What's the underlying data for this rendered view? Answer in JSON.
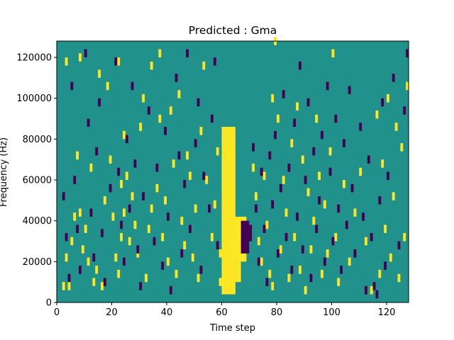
{
  "chart_data": {
    "type": "heatmap",
    "title": "Predicted : Gma",
    "xlabel": "Time step",
    "ylabel": "Frequency (Hz)",
    "xlim": [
      0,
      128
    ],
    "ylim": [
      0,
      128000
    ],
    "x_ticks": [
      0,
      20,
      40,
      60,
      80,
      100,
      120
    ],
    "y_ticks": [
      0,
      20000,
      40000,
      60000,
      80000,
      100000,
      120000
    ],
    "y_tick_labels": [
      "0",
      "20000",
      "40000",
      "60000",
      "80000",
      "100000",
      "120000"
    ],
    "n_time_steps": 128,
    "n_freq_bins": 64,
    "freq_bin_width_hz": 2000,
    "levels": [
      -1,
      0,
      1
    ],
    "colors": {
      "low": "#440154",
      "mid": "#21918c",
      "high": "#fde725",
      "frame": "#000000",
      "text": "#000000",
      "background": "#ffffff"
    },
    "colormap": "viridis",
    "background_level": 0,
    "high_blocks": [
      {
        "t": [
          60,
          65
        ],
        "f": [
          4000,
          86000
        ]
      },
      {
        "t": [
          64,
          69
        ],
        "f": [
          20000,
          42000
        ]
      },
      {
        "t": [
          65,
          67
        ],
        "f": [
          10000,
          20000
        ]
      }
    ],
    "low_blocks": [
      {
        "t": [
          67,
          70
        ],
        "f": [
          24000,
          40000
        ]
      },
      {
        "t": [
          69,
          71
        ],
        "f": [
          30000,
          38000
        ]
      }
    ],
    "high_cells": [
      [
        2,
        6000
      ],
      [
        3,
        20000
      ],
      [
        3,
        116000
      ],
      [
        4,
        6000
      ],
      [
        5,
        28000
      ],
      [
        6,
        40000
      ],
      [
        7,
        70000
      ],
      [
        8,
        42000
      ],
      [
        8,
        118000
      ],
      [
        9,
        24000
      ],
      [
        10,
        34000
      ],
      [
        11,
        18000
      ],
      [
        12,
        64000
      ],
      [
        13,
        8000
      ],
      [
        14,
        14000
      ],
      [
        15,
        110000
      ],
      [
        16,
        6000
      ],
      [
        17,
        48000
      ],
      [
        18,
        104000
      ],
      [
        19,
        68000
      ],
      [
        20,
        40000
      ],
      [
        21,
        20000
      ],
      [
        22,
        12000
      ],
      [
        22,
        116000
      ],
      [
        23,
        30000
      ],
      [
        23,
        56000
      ],
      [
        24,
        42000
      ],
      [
        24,
        80000
      ],
      [
        25,
        60000
      ],
      [
        26,
        28000
      ],
      [
        27,
        50000
      ],
      [
        28,
        36000
      ],
      [
        29,
        22000
      ],
      [
        30,
        84000
      ],
      [
        31,
        98000
      ],
      [
        32,
        10000
      ],
      [
        33,
        34000
      ],
      [
        34,
        44000
      ],
      [
        34,
        114000
      ],
      [
        36,
        54000
      ],
      [
        37,
        88000
      ],
      [
        37,
        120000
      ],
      [
        38,
        30000
      ],
      [
        39,
        48000
      ],
      [
        40,
        18000
      ],
      [
        41,
        92000
      ],
      [
        42,
        66000
      ],
      [
        43,
        12000
      ],
      [
        44,
        100000
      ],
      [
        45,
        38000
      ],
      [
        46,
        26000
      ],
      [
        47,
        70000
      ],
      [
        48,
        60000
      ],
      [
        49,
        20000
      ],
      [
        50,
        44000
      ],
      [
        51,
        10000
      ],
      [
        52,
        82000
      ],
      [
        53,
        114000
      ],
      [
        54,
        58000
      ],
      [
        56,
        30000
      ],
      [
        57,
        46000
      ],
      [
        58,
        72000
      ],
      [
        59,
        8000
      ],
      [
        59,
        22000
      ],
      [
        60,
        56000
      ],
      [
        71,
        64000
      ],
      [
        72,
        50000
      ],
      [
        73,
        28000
      ],
      [
        74,
        18000
      ],
      [
        75,
        60000
      ],
      [
        76,
        36000
      ],
      [
        77,
        12000
      ],
      [
        78,
        6000
      ],
      [
        78,
        98000
      ],
      [
        79,
        126000
      ],
      [
        80,
        88000
      ],
      [
        81,
        24000
      ],
      [
        82,
        58000
      ],
      [
        83,
        42000
      ],
      [
        84,
        10000
      ],
      [
        85,
        76000
      ],
      [
        86,
        30000
      ],
      [
        87,
        94000
      ],
      [
        88,
        14000
      ],
      [
        89,
        68000
      ],
      [
        90,
        4000
      ],
      [
        91,
        52000
      ],
      [
        92,
        24000
      ],
      [
        93,
        38000
      ],
      [
        94,
        88000
      ],
      [
        95,
        60000
      ],
      [
        96,
        12000
      ],
      [
        97,
        46000
      ],
      [
        98,
        22000
      ],
      [
        99,
        72000
      ],
      [
        100,
        120000
      ],
      [
        101,
        30000
      ],
      [
        102,
        8000
      ],
      [
        104,
        56000
      ],
      [
        106,
        18000
      ],
      [
        108,
        42000
      ],
      [
        110,
        62000
      ],
      [
        112,
        28000
      ],
      [
        114,
        4000
      ],
      [
        116,
        90000
      ],
      [
        117,
        12000
      ],
      [
        118,
        66000
      ],
      [
        119,
        34000
      ],
      [
        120,
        98000
      ],
      [
        121,
        20000
      ],
      [
        122,
        50000
      ],
      [
        123,
        84000
      ],
      [
        124,
        10000
      ],
      [
        125,
        74000
      ],
      [
        126,
        30000
      ],
      [
        127,
        104000
      ]
    ],
    "low_cells": [
      [
        2,
        50000
      ],
      [
        3,
        30000
      ],
      [
        4,
        10000
      ],
      [
        5,
        104000
      ],
      [
        6,
        58000
      ],
      [
        7,
        34000
      ],
      [
        8,
        14000
      ],
      [
        10,
        120000
      ],
      [
        11,
        86000
      ],
      [
        12,
        42000
      ],
      [
        13,
        20000
      ],
      [
        14,
        72000
      ],
      [
        15,
        96000
      ],
      [
        16,
        32000
      ],
      [
        17,
        8000
      ],
      [
        19,
        54000
      ],
      [
        21,
        116000
      ],
      [
        22,
        62000
      ],
      [
        23,
        36000
      ],
      [
        24,
        18000
      ],
      [
        25,
        78000
      ],
      [
        26,
        44000
      ],
      [
        27,
        104000
      ],
      [
        28,
        66000
      ],
      [
        29,
        24000
      ],
      [
        30,
        6000
      ],
      [
        31,
        50000
      ],
      [
        33,
        92000
      ],
      [
        35,
        28000
      ],
      [
        36,
        64000
      ],
      [
        38,
        16000
      ],
      [
        39,
        82000
      ],
      [
        40,
        40000
      ],
      [
        41,
        4000
      ],
      [
        43,
        108000
      ],
      [
        44,
        70000
      ],
      [
        45,
        22000
      ],
      [
        46,
        56000
      ],
      [
        47,
        120000
      ],
      [
        48,
        34000
      ],
      [
        50,
        76000
      ],
      [
        51,
        96000
      ],
      [
        52,
        14000
      ],
      [
        53,
        60000
      ],
      [
        55,
        44000
      ],
      [
        56,
        88000
      ],
      [
        57,
        116000
      ],
      [
        58,
        26000
      ],
      [
        71,
        74000
      ],
      [
        72,
        44000
      ],
      [
        73,
        18000
      ],
      [
        74,
        62000
      ],
      [
        75,
        34000
      ],
      [
        76,
        8000
      ],
      [
        77,
        70000
      ],
      [
        78,
        46000
      ],
      [
        79,
        80000
      ],
      [
        80,
        22000
      ],
      [
        81,
        54000
      ],
      [
        82,
        100000
      ],
      [
        83,
        30000
      ],
      [
        84,
        64000
      ],
      [
        85,
        14000
      ],
      [
        86,
        86000
      ],
      [
        87,
        40000
      ],
      [
        88,
        114000
      ],
      [
        89,
        24000
      ],
      [
        90,
        58000
      ],
      [
        91,
        96000
      ],
      [
        92,
        10000
      ],
      [
        93,
        72000
      ],
      [
        94,
        34000
      ],
      [
        95,
        48000
      ],
      [
        96,
        80000
      ],
      [
        97,
        18000
      ],
      [
        98,
        104000
      ],
      [
        99,
        62000
      ],
      [
        100,
        28000
      ],
      [
        101,
        88000
      ],
      [
        102,
        44000
      ],
      [
        103,
        14000
      ],
      [
        104,
        76000
      ],
      [
        105,
        36000
      ],
      [
        106,
        102000
      ],
      [
        107,
        54000
      ],
      [
        108,
        22000
      ],
      [
        110,
        84000
      ],
      [
        111,
        40000
      ],
      [
        112,
        4000
      ],
      [
        113,
        68000
      ],
      [
        114,
        30000
      ],
      [
        115,
        6000
      ],
      [
        116,
        2000
      ],
      [
        117,
        48000
      ],
      [
        118,
        96000
      ],
      [
        119,
        16000
      ],
      [
        120,
        60000
      ],
      [
        122,
        108000
      ],
      [
        124,
        26000
      ],
      [
        126,
        92000
      ],
      [
        127,
        120000
      ]
    ]
  }
}
